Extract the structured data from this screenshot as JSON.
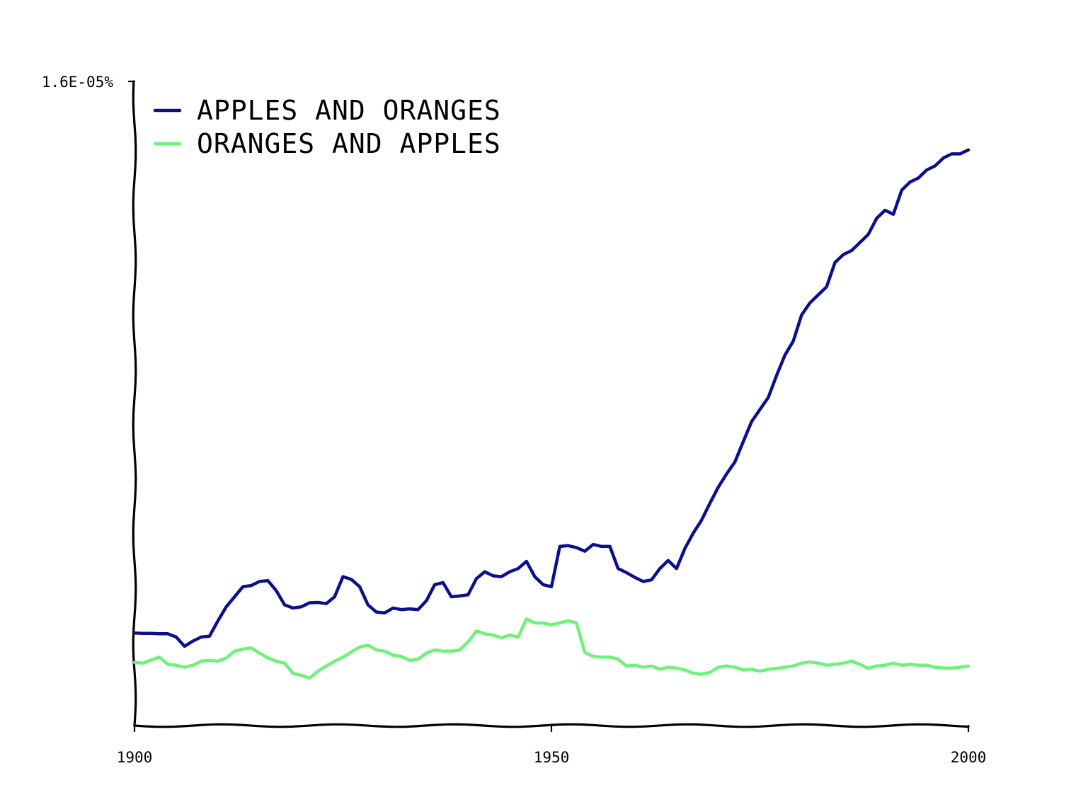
{
  "chart_data": {
    "type": "line",
    "title": "",
    "xlabel": "",
    "ylabel": "",
    "xlim": [
      1900,
      2000
    ],
    "ylim": [
      0,
      1.6e-05
    ],
    "x_ticks": [
      {
        "value": 1900,
        "label": "1900"
      },
      {
        "value": 1950,
        "label": "1950"
      },
      {
        "value": 2000,
        "label": "2000"
      }
    ],
    "y_ticks": [
      {
        "value": 1.6e-05,
        "label": "1.6E-05%"
      }
    ],
    "legend_position": "top-left",
    "grid": false,
    "series": [
      {
        "name": "APPLES AND ORANGES",
        "color": "#0b0f8c",
        "x": [
          1900,
          1901,
          1902,
          1903,
          1904,
          1905,
          1906,
          1907,
          1908,
          1909,
          1910,
          1911,
          1912,
          1913,
          1914,
          1915,
          1916,
          1917,
          1918,
          1919,
          1920,
          1921,
          1922,
          1923,
          1924,
          1925,
          1926,
          1927,
          1928,
          1929,
          1930,
          1931,
          1932,
          1933,
          1934,
          1935,
          1936,
          1937,
          1938,
          1939,
          1940,
          1941,
          1942,
          1943,
          1944,
          1945,
          1946,
          1947,
          1948,
          1949,
          1950,
          1951,
          1952,
          1953,
          1954,
          1955,
          1956,
          1957,
          1958,
          1959,
          1960,
          1961,
          1962,
          1963,
          1964,
          1965,
          1966,
          1967,
          1968,
          1969,
          1970,
          1971,
          1972,
          1973,
          1974,
          1975,
          1976,
          1977,
          1978,
          1979,
          1980,
          1981,
          1982,
          1983,
          1984,
          1985,
          1986,
          1987,
          1988,
          1989,
          1990,
          1991,
          1992,
          1993,
          1994,
          1995,
          1996,
          1997,
          1998,
          1999,
          2000
        ],
        "values": [
          2.3e-06,
          2.29e-06,
          2.29e-06,
          2.28e-06,
          2.28e-06,
          2.2e-06,
          1.97e-06,
          2.1e-06,
          2.2e-06,
          2.22e-06,
          2.6e-06,
          2.95e-06,
          3.2e-06,
          3.45e-06,
          3.48e-06,
          3.58e-06,
          3.6e-06,
          3.35e-06,
          3e-06,
          2.92e-06,
          2.95e-06,
          3.05e-06,
          3.06e-06,
          3.03e-06,
          3.2e-06,
          3.7e-06,
          3.63e-06,
          3.45e-06,
          3e-06,
          2.82e-06,
          2.8e-06,
          2.92e-06,
          2.88e-06,
          2.9e-06,
          2.88e-06,
          3.1e-06,
          3.5e-06,
          3.55e-06,
          3.2e-06,
          3.22e-06,
          3.25e-06,
          3.65e-06,
          3.82e-06,
          3.72e-06,
          3.7e-06,
          3.82e-06,
          3.9e-06,
          4.08e-06,
          3.7e-06,
          3.5e-06,
          3.45e-06,
          4.45e-06,
          4.47e-06,
          4.42e-06,
          4.33e-06,
          4.5e-06,
          4.45e-06,
          4.45e-06,
          3.9e-06,
          3.8e-06,
          3.68e-06,
          3.58e-06,
          3.62e-06,
          3.9e-06,
          4.1e-06,
          3.9e-06,
          4.4e-06,
          4.78e-06,
          5.1e-06,
          5.52e-06,
          5.92e-06,
          6.25e-06,
          6.55e-06,
          7.05e-06,
          7.55e-06,
          7.85e-06,
          8.15e-06,
          8.7e-06,
          9.2e-06,
          9.55e-06,
          1.02e-05,
          1.05e-05,
          1.07e-05,
          1.09e-05,
          1.15e-05,
          1.17e-05,
          1.18e-05,
          1.2e-05,
          1.22e-05,
          1.26e-05,
          1.28e-05,
          1.27e-05,
          1.33e-05,
          1.35e-05,
          1.36e-05,
          1.38e-05,
          1.39e-05,
          1.41e-05,
          1.42e-05,
          1.42e-05,
          1.43e-05
        ]
      },
      {
        "name": "ORANGES AND APPLES",
        "color": "#6df27a",
        "x": [
          1900,
          1901,
          1902,
          1903,
          1904,
          1905,
          1906,
          1907,
          1908,
          1909,
          1910,
          1911,
          1912,
          1913,
          1914,
          1915,
          1916,
          1917,
          1918,
          1919,
          1920,
          1921,
          1922,
          1923,
          1924,
          1925,
          1926,
          1927,
          1928,
          1929,
          1930,
          1931,
          1932,
          1933,
          1934,
          1935,
          1936,
          1937,
          1938,
          1939,
          1940,
          1941,
          1942,
          1943,
          1944,
          1945,
          1946,
          1947,
          1948,
          1949,
          1950,
          1951,
          1952,
          1953,
          1954,
          1955,
          1956,
          1957,
          1958,
          1959,
          1960,
          1961,
          1962,
          1963,
          1964,
          1965,
          1966,
          1967,
          1968,
          1969,
          1970,
          1971,
          1972,
          1973,
          1974,
          1975,
          1976,
          1977,
          1978,
          1979,
          1980,
          1981,
          1982,
          1983,
          1984,
          1985,
          1986,
          1987,
          1988,
          1989,
          1990,
          1991,
          1992,
          1993,
          1994,
          1995,
          1996,
          1997,
          1998,
          1999,
          2000
        ],
        "values": [
          1.57e-06,
          1.55e-06,
          1.63e-06,
          1.7e-06,
          1.52e-06,
          1.5e-06,
          1.45e-06,
          1.5e-06,
          1.6e-06,
          1.62e-06,
          1.6e-06,
          1.68e-06,
          1.85e-06,
          1.9e-06,
          1.93e-06,
          1.8e-06,
          1.68e-06,
          1.6e-06,
          1.55e-06,
          1.3e-06,
          1.25e-06,
          1.18e-06,
          1.35e-06,
          1.48e-06,
          1.6e-06,
          1.7e-06,
          1.83e-06,
          1.95e-06,
          2e-06,
          1.88e-06,
          1.85e-06,
          1.75e-06,
          1.72e-06,
          1.62e-06,
          1.65e-06,
          1.8e-06,
          1.88e-06,
          1.85e-06,
          1.85e-06,
          1.88e-06,
          2.08e-06,
          2.35e-06,
          2.28e-06,
          2.25e-06,
          2.18e-06,
          2.25e-06,
          2.2e-06,
          2.65e-06,
          2.55e-06,
          2.55e-06,
          2.5e-06,
          2.55e-06,
          2.6e-06,
          2.55e-06,
          1.82e-06,
          1.72e-06,
          1.7e-06,
          1.7e-06,
          1.65e-06,
          1.48e-06,
          1.5e-06,
          1.45e-06,
          1.48e-06,
          1.4e-06,
          1.45e-06,
          1.43e-06,
          1.38e-06,
          1.3e-06,
          1.28e-06,
          1.32e-06,
          1.45e-06,
          1.48e-06,
          1.45e-06,
          1.38e-06,
          1.4e-06,
          1.35e-06,
          1.4e-06,
          1.42e-06,
          1.45e-06,
          1.48e-06,
          1.55e-06,
          1.58e-06,
          1.55e-06,
          1.5e-06,
          1.52e-06,
          1.55e-06,
          1.6e-06,
          1.52e-06,
          1.42e-06,
          1.48e-06,
          1.5e-06,
          1.55e-06,
          1.5e-06,
          1.52e-06,
          1.5e-06,
          1.5e-06,
          1.45e-06,
          1.43e-06,
          1.43e-06,
          1.45e-06,
          1.48e-06
        ]
      }
    ]
  }
}
